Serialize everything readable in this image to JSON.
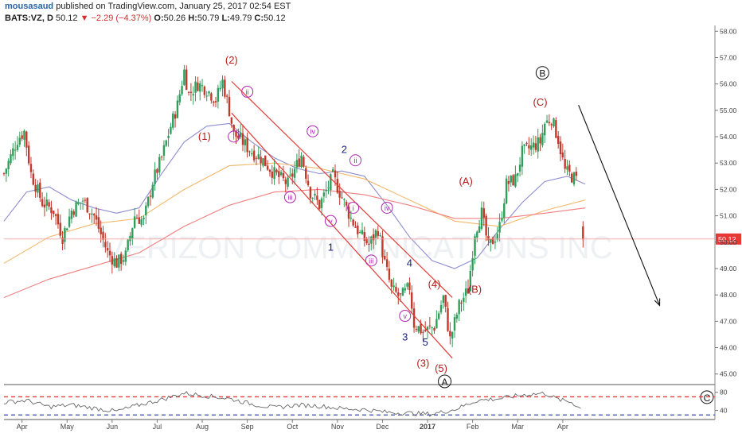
{
  "header": {
    "author": "mousasaud",
    "published": "published on TradingView.com, January 25, 2017 02:54 EST",
    "symbol": "BATS:VZ, D",
    "last": "50.12",
    "change": "▼ −2.29 (−4.37%)",
    "o_label": "O:",
    "o_value": "50.26",
    "h_label": "H:",
    "h_value": "50.79",
    "l_label": "L:",
    "l_value": "49.79",
    "c_label": "C:",
    "c_value": "50.12"
  },
  "watermark": "VERIZON COMMUNICATIONS INC",
  "price_badge": "50.12",
  "colors": {
    "up": "#2f9e5a",
    "down": "#c0392b",
    "channel": "#e53935",
    "wave_red": "#b71c1c",
    "wave_blue": "#1a237e",
    "wave_purple": "#b026b0",
    "ma_fast": "#8c8ccf",
    "ma_mid": "#f3b86a",
    "ma_slow": "#ef7f7f",
    "rsi_high": "#e53935",
    "rsi_low": "#3949ab"
  },
  "chart_data": {
    "type": "candlestick",
    "title": "BATS:VZ, D",
    "xlabel": "",
    "ylabel": "",
    "x_ticks": [
      "Apr",
      "May",
      "Jun",
      "Jul",
      "Aug",
      "Sep",
      "Oct",
      "Nov",
      "Dec",
      "2017",
      "Feb",
      "Mar",
      "Apr"
    ],
    "y_ticks": [
      "45.00",
      "46.00",
      "47.00",
      "48.00",
      "49.00",
      "50.00",
      "51.00",
      "52.00",
      "53.00",
      "54.00",
      "55.00",
      "56.00",
      "57.00",
      "58.00"
    ],
    "ylim": [
      44.6,
      58.1
    ],
    "xlim_months": [
      0,
      12.3
    ],
    "last_price": 50.12,
    "price_path": [
      [
        0.0,
        52.6
      ],
      [
        0.3,
        53.9
      ],
      [
        0.45,
        54.2
      ],
      [
        0.6,
        52.6
      ],
      [
        0.85,
        51.5
      ],
      [
        1.1,
        51.2
      ],
      [
        1.3,
        50.2
      ],
      [
        1.5,
        51.2
      ],
      [
        1.75,
        51.6
      ],
      [
        2.0,
        51.0
      ],
      [
        2.3,
        49.6
      ],
      [
        2.5,
        49.2
      ],
      [
        2.7,
        49.5
      ],
      [
        2.9,
        51.0
      ],
      [
        3.1,
        50.8
      ],
      [
        3.3,
        52.3
      ],
      [
        3.5,
        53.2
      ],
      [
        3.7,
        54.4
      ],
      [
        3.85,
        55.2
      ],
      [
        4.0,
        56.5
      ],
      [
        4.1,
        55.6
      ],
      [
        4.3,
        56.0
      ],
      [
        4.5,
        55.8
      ],
      [
        4.7,
        55.4
      ],
      [
        4.85,
        56.1
      ],
      [
        5.0,
        55.0
      ],
      [
        5.1,
        54.1
      ],
      [
        5.25,
        53.9
      ],
      [
        5.45,
        53.5
      ],
      [
        5.7,
        53.2
      ],
      [
        6.0,
        52.6
      ],
      [
        6.3,
        52.2
      ],
      [
        6.6,
        53.3
      ],
      [
        6.8,
        51.9
      ],
      [
        7.0,
        51.4
      ],
      [
        7.3,
        52.5
      ],
      [
        7.5,
        51.7
      ],
      [
        7.7,
        50.9
      ],
      [
        7.9,
        50.3
      ],
      [
        8.1,
        49.9
      ],
      [
        8.3,
        50.5
      ],
      [
        8.45,
        49.2
      ],
      [
        8.6,
        48.2
      ],
      [
        8.8,
        47.9
      ],
      [
        9.0,
        48.3
      ],
      [
        9.1,
        46.9
      ],
      [
        9.3,
        46.6
      ],
      [
        9.55,
        46.8
      ],
      [
        9.75,
        47.9
      ],
      [
        9.9,
        46.3
      ],
      [
        10.1,
        47.6
      ],
      [
        10.3,
        48.2
      ],
      [
        10.45,
        50.4
      ],
      [
        10.6,
        51.1
      ],
      [
        10.75,
        49.8
      ],
      [
        10.9,
        50.2
      ],
      [
        11.0,
        50.6
      ],
      [
        11.15,
        52.2
      ],
      [
        11.35,
        52.4
      ],
      [
        11.5,
        53.4
      ],
      [
        11.7,
        53.6
      ],
      [
        11.9,
        53.8
      ],
      [
        12.0,
        54.5
      ],
      [
        12.15,
        54.7
      ],
      [
        12.3,
        53.9
      ],
      [
        12.45,
        52.7
      ],
      [
        12.6,
        52.5
      ],
      [
        12.75,
        52.3
      ],
      [
        12.85,
        50.1
      ]
    ],
    "series": [
      {
        "name": "",
        "type": "sma_fast",
        "points": [
          [
            0.0,
            50.8
          ],
          [
            0.5,
            51.9
          ],
          [
            1.0,
            52.1
          ],
          [
            1.5,
            51.6
          ],
          [
            2.0,
            51.3
          ],
          [
            2.5,
            51.1
          ],
          [
            3.0,
            51.3
          ],
          [
            3.5,
            52.6
          ],
          [
            4.0,
            53.8
          ],
          [
            4.5,
            54.4
          ],
          [
            5.0,
            54.5
          ],
          [
            5.5,
            53.8
          ],
          [
            6.0,
            53.2
          ],
          [
            6.5,
            52.8
          ],
          [
            7.0,
            52.6
          ],
          [
            7.5,
            52.7
          ],
          [
            8.0,
            52.5
          ],
          [
            8.5,
            51.4
          ],
          [
            9.0,
            50.2
          ],
          [
            9.5,
            49.3
          ],
          [
            10.0,
            49.0
          ],
          [
            10.5,
            49.4
          ],
          [
            11.0,
            50.5
          ],
          [
            11.5,
            51.5
          ],
          [
            12.0,
            52.3
          ],
          [
            12.5,
            52.5
          ],
          [
            12.9,
            52.2
          ]
        ]
      },
      {
        "name": "",
        "type": "sma_mid",
        "points": [
          [
            0.0,
            49.2
          ],
          [
            1.0,
            50.2
          ],
          [
            2.0,
            50.7
          ],
          [
            3.0,
            50.9
          ],
          [
            4.0,
            52.0
          ],
          [
            5.0,
            52.9
          ],
          [
            6.0,
            53.0
          ],
          [
            7.0,
            52.8
          ],
          [
            8.0,
            52.4
          ],
          [
            9.0,
            51.6
          ],
          [
            10.0,
            50.8
          ],
          [
            11.0,
            50.6
          ],
          [
            12.0,
            51.2
          ],
          [
            12.9,
            51.6
          ]
        ]
      },
      {
        "name": "",
        "type": "sma_slow",
        "points": [
          [
            0.0,
            47.9
          ],
          [
            1.0,
            48.6
          ],
          [
            2.0,
            49.1
          ],
          [
            3.0,
            49.6
          ],
          [
            4.0,
            50.6
          ],
          [
            5.0,
            51.4
          ],
          [
            6.0,
            51.9
          ],
          [
            7.0,
            52.0
          ],
          [
            8.0,
            51.8
          ],
          [
            9.0,
            51.4
          ],
          [
            10.0,
            50.9
          ],
          [
            11.0,
            50.9
          ],
          [
            12.0,
            51.1
          ],
          [
            12.9,
            51.3
          ]
        ]
      }
    ],
    "channel": {
      "upper": [
        [
          5.05,
          56.1
        ],
        [
          9.95,
          47.9
        ]
      ],
      "lower": [
        [
          5.05,
          54.9
        ],
        [
          9.95,
          45.6
        ]
      ]
    },
    "forecast_arrow": {
      "from": [
        12.75,
        55.2
      ],
      "to": [
        14.55,
        47.6
      ]
    },
    "wave_labels": [
      {
        "text": "(2)",
        "x": 5.05,
        "y": 56.9,
        "color": "red",
        "style": "plain"
      },
      {
        "text": "(1)",
        "x": 4.45,
        "y": 54.0,
        "color": "red",
        "style": "plain"
      },
      {
        "text": "ii",
        "x": 5.4,
        "y": 55.6,
        "color": "purple",
        "style": "circle"
      },
      {
        "text": "i",
        "x": 5.1,
        "y": 53.9,
        "color": "purple",
        "style": "circle"
      },
      {
        "text": "iv",
        "x": 6.85,
        "y": 54.1,
        "color": "purple",
        "style": "circle"
      },
      {
        "text": "2",
        "x": 7.55,
        "y": 53.5,
        "color": "blue",
        "style": "plain"
      },
      {
        "text": "ii",
        "x": 7.8,
        "y": 53.0,
        "color": "purple",
        "style": "circle"
      },
      {
        "text": "iii",
        "x": 6.35,
        "y": 51.6,
        "color": "purple",
        "style": "circle"
      },
      {
        "text": "i",
        "x": 7.75,
        "y": 51.2,
        "color": "purple",
        "style": "circle"
      },
      {
        "text": "iv",
        "x": 8.5,
        "y": 51.2,
        "color": "purple",
        "style": "circle"
      },
      {
        "text": "v",
        "x": 7.25,
        "y": 50.7,
        "color": "purple",
        "style": "circle"
      },
      {
        "text": "1",
        "x": 7.25,
        "y": 49.8,
        "color": "blue",
        "style": "plain"
      },
      {
        "text": "iii",
        "x": 8.15,
        "y": 49.2,
        "color": "purple",
        "style": "circle"
      },
      {
        "text": "4",
        "x": 9.0,
        "y": 49.2,
        "color": "blue",
        "style": "plain"
      },
      {
        "text": "(4)",
        "x": 9.55,
        "y": 48.4,
        "color": "red",
        "style": "plain"
      },
      {
        "text": "(B)",
        "x": 10.45,
        "y": 48.2,
        "color": "red",
        "style": "plain"
      },
      {
        "text": "v",
        "x": 8.9,
        "y": 47.1,
        "color": "purple",
        "style": "circle"
      },
      {
        "text": "3",
        "x": 8.9,
        "y": 46.4,
        "color": "blue",
        "style": "plain"
      },
      {
        "text": "5",
        "x": 9.35,
        "y": 46.2,
        "color": "blue",
        "style": "plain"
      },
      {
        "text": "(3)",
        "x": 9.3,
        "y": 45.4,
        "color": "red",
        "style": "plain"
      },
      {
        "text": "(5)",
        "x": 9.7,
        "y": 45.2,
        "color": "red",
        "style": "plain"
      },
      {
        "text": "A",
        "x": 9.78,
        "y": 44.6,
        "color": "black",
        "style": "circle"
      },
      {
        "text": "(A)",
        "x": 10.25,
        "y": 52.3,
        "color": "red",
        "style": "plain"
      },
      {
        "text": "(C)",
        "x": 11.9,
        "y": 55.3,
        "color": "red",
        "style": "plain"
      },
      {
        "text": "B",
        "x": 11.95,
        "y": 56.3,
        "color": "black",
        "style": "circle"
      },
      {
        "text": "C",
        "x": 15.6,
        "y": 44.0,
        "color": "black",
        "style": "circle"
      }
    ],
    "indicator": {
      "type": "rsi",
      "ticks": [
        "80",
        "40"
      ],
      "levels": [
        70,
        30
      ],
      "ylim": [
        20,
        90
      ],
      "values": [
        [
          0.0,
          58
        ],
        [
          0.5,
          62
        ],
        [
          1.0,
          48
        ],
        [
          1.5,
          52
        ],
        [
          2.0,
          45
        ],
        [
          2.5,
          38
        ],
        [
          3.0,
          52
        ],
        [
          3.5,
          64
        ],
        [
          4.0,
          78
        ],
        [
          4.5,
          72
        ],
        [
          5.0,
          66
        ],
        [
          5.5,
          54
        ],
        [
          6.0,
          46
        ],
        [
          6.5,
          52
        ],
        [
          7.0,
          50
        ],
        [
          7.5,
          44
        ],
        [
          8.0,
          42
        ],
        [
          8.5,
          36
        ],
        [
          9.0,
          34
        ],
        [
          9.5,
          32
        ],
        [
          10.0,
          42
        ],
        [
          10.5,
          62
        ],
        [
          11.0,
          66
        ],
        [
          11.5,
          74
        ],
        [
          12.0,
          78
        ],
        [
          12.3,
          64
        ],
        [
          12.6,
          58
        ],
        [
          12.85,
          40
        ]
      ]
    }
  }
}
